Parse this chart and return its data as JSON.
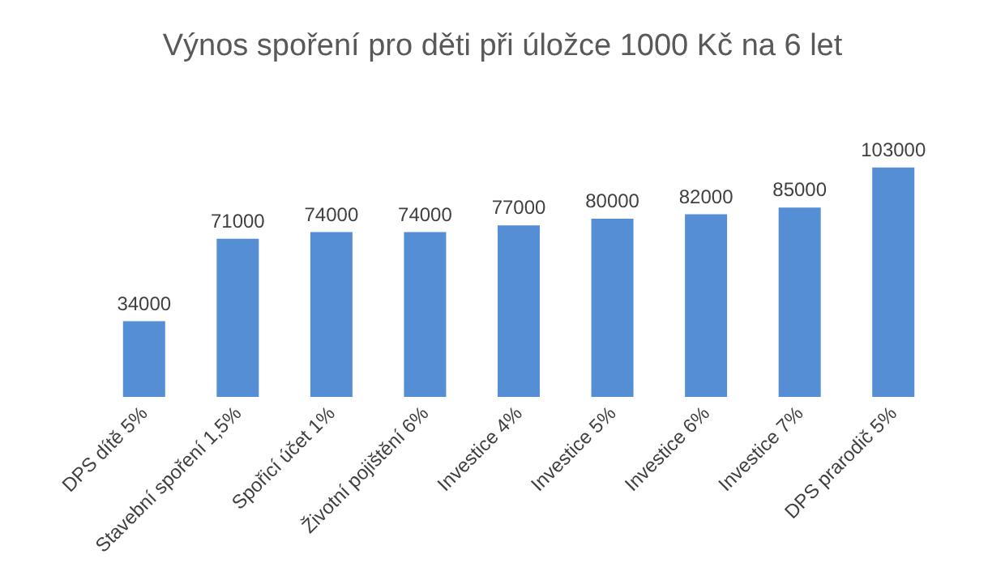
{
  "chart_data": {
    "type": "bar",
    "title": "Výnos spoření pro děti při úložce 1000 Kč na 6 let",
    "categories": [
      "DPS dítě 5%",
      "Stavební spoření 1,5%",
      "Spořicí účet 1%",
      "Životní pojištění 6%",
      "Investice 4%",
      "Investice 5%",
      "Investice 6%",
      "Investice 7%",
      "DPS prarodič 5%"
    ],
    "values": [
      34000,
      71000,
      74000,
      74000,
      77000,
      80000,
      82000,
      85000,
      103000
    ],
    "color": "#558ed5",
    "data_labels": true
  }
}
